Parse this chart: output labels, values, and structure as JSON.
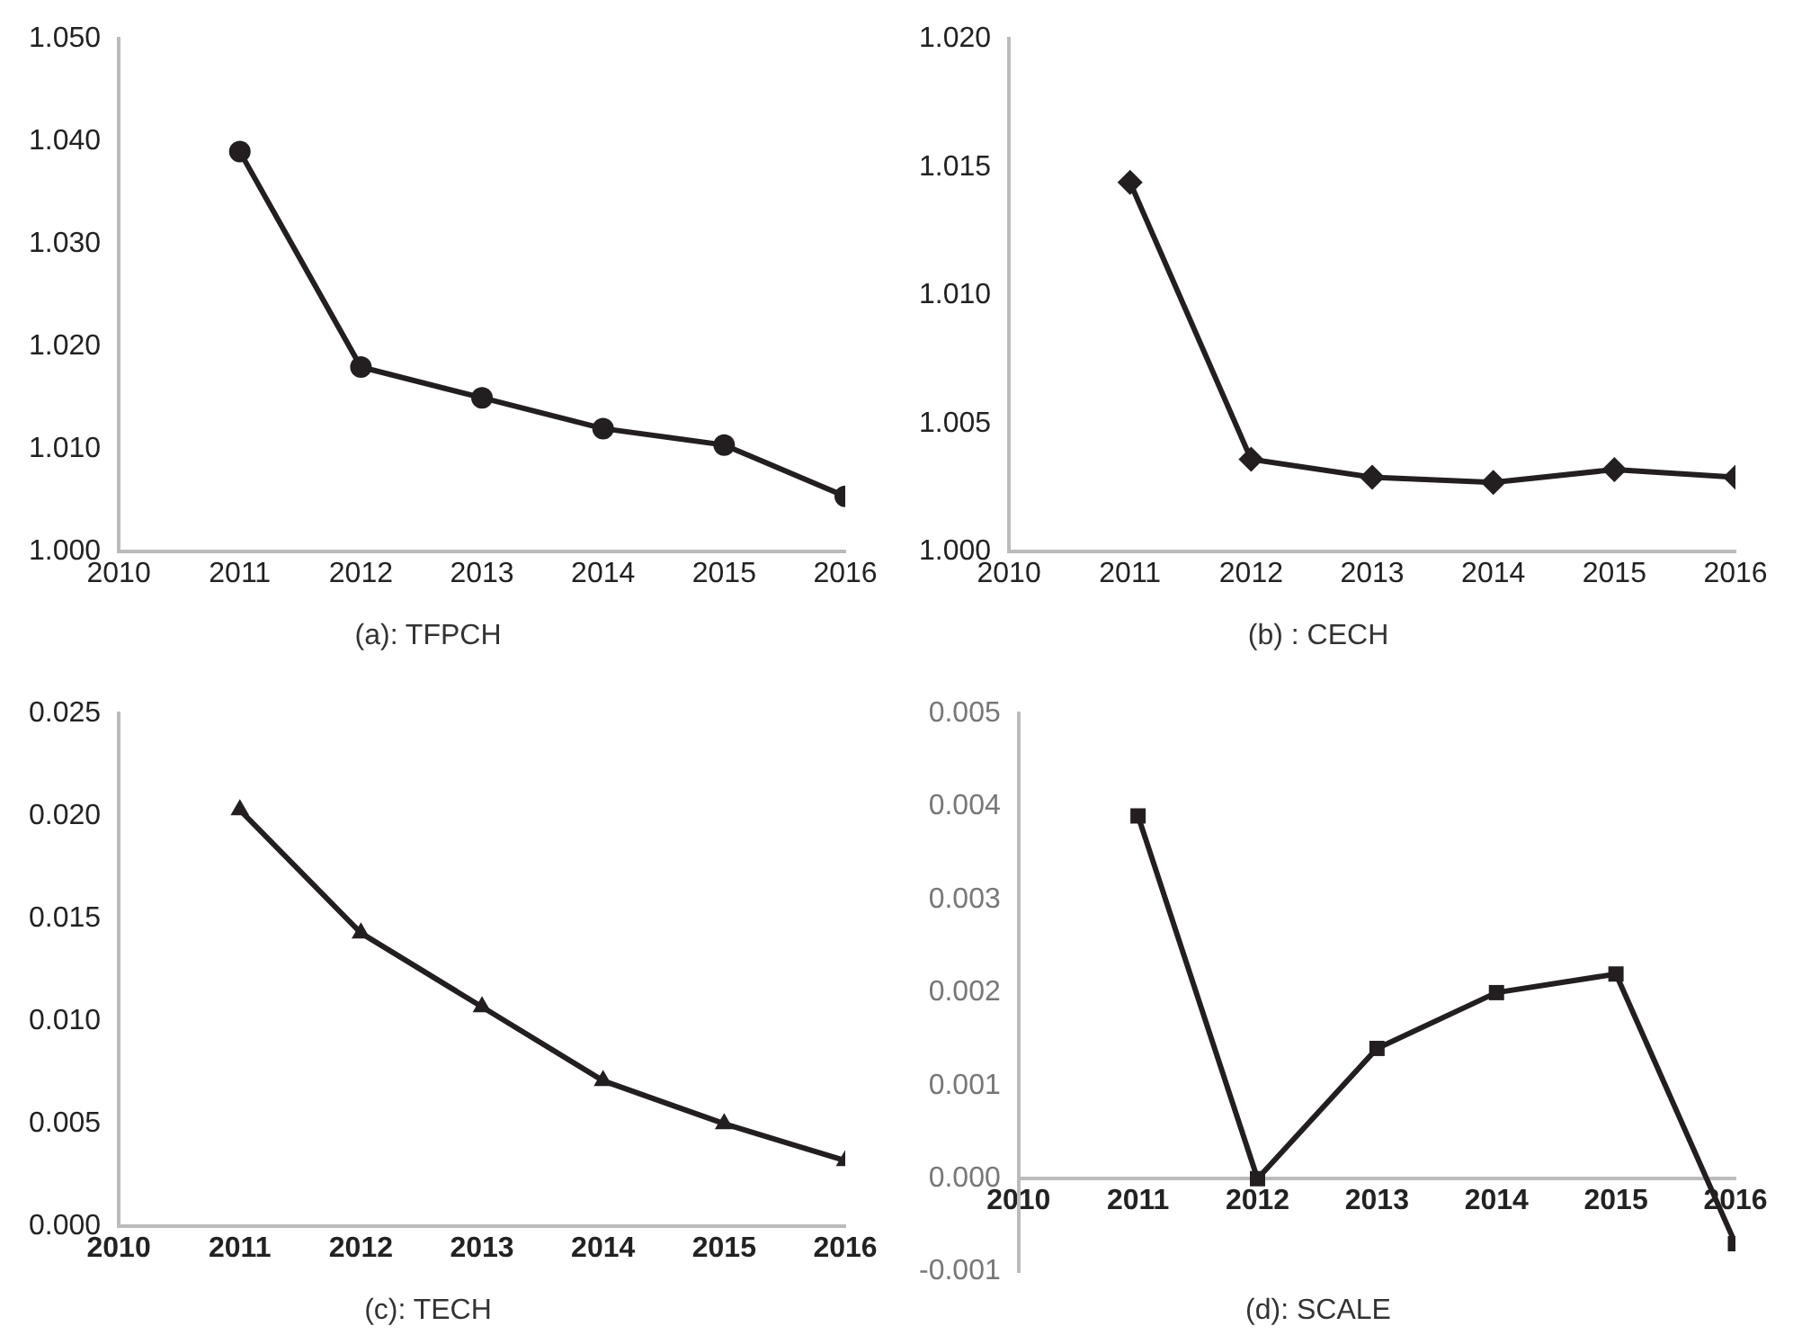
{
  "chart_data": [
    {
      "type": "line",
      "title": "(a): TFPCH",
      "x": [
        2011,
        2012,
        2013,
        2014,
        2015,
        2016
      ],
      "series": [
        {
          "color": "#231f20",
          "values": [
            1.039,
            1.018,
            1.015,
            1.012,
            1.0104,
            1.0054
          ]
        }
      ],
      "xlim": [
        2010,
        2016
      ],
      "xticks": [
        2010,
        2011,
        2012,
        2013,
        2014,
        2015,
        2016
      ],
      "ylim": [
        1.0,
        1.05
      ],
      "yticks": [
        {
          "value": 1.0,
          "label": "1.000"
        },
        {
          "value": 1.01,
          "label": "1.010"
        },
        {
          "value": 1.02,
          "label": "1.020"
        },
        {
          "value": 1.03,
          "label": "1.030"
        },
        {
          "value": 1.04,
          "label": "1.040"
        },
        {
          "value": 1.05,
          "label": "1.050"
        }
      ],
      "grid": false,
      "legend": false,
      "marker": "circle",
      "line_style": "solid"
    },
    {
      "type": "line",
      "title": "(b) : CECH",
      "x": [
        2011,
        2012,
        2013,
        2014,
        2015,
        2016
      ],
      "series": [
        {
          "color": "#231f20",
          "values": [
            1.0144,
            1.0036,
            1.0029,
            1.0027,
            1.0032,
            1.0029
          ]
        }
      ],
      "xlim": [
        2010,
        2016
      ],
      "xticks": [
        2010,
        2011,
        2012,
        2013,
        2014,
        2015,
        2016
      ],
      "ylim": [
        1.0,
        1.02
      ],
      "yticks": [
        {
          "value": 1.0,
          "label": "1.000"
        },
        {
          "value": 1.005,
          "label": "1.005"
        },
        {
          "value": 1.01,
          "label": "1.010"
        },
        {
          "value": 1.015,
          "label": "1.015"
        },
        {
          "value": 1.02,
          "label": "1.020"
        }
      ],
      "grid": false,
      "legend": false,
      "marker": "diamond",
      "line_style": "solid"
    },
    {
      "type": "line",
      "title": "(c): TECH",
      "x": [
        2011,
        2012,
        2013,
        2014,
        2015,
        2016
      ],
      "series": [
        {
          "color": "#231f20",
          "values": [
            0.0203,
            0.0143,
            0.0107,
            0.0071,
            0.005,
            0.0032
          ]
        }
      ],
      "xlim": [
        2010,
        2016
      ],
      "xticks": [
        2010,
        2011,
        2012,
        2013,
        2014,
        2015,
        2016
      ],
      "ylim": [
        0,
        0.025
      ],
      "yticks": [
        {
          "value": 0,
          "label": "0.000"
        },
        {
          "value": 0.005,
          "label": "0.005"
        },
        {
          "value": 0.01,
          "label": "0.010"
        },
        {
          "value": 0.015,
          "label": "0.015"
        },
        {
          "value": 0.02,
          "label": "0.020"
        },
        {
          "value": 0.025,
          "label": "0.025"
        }
      ],
      "grid": false,
      "legend": false,
      "marker": "triangle",
      "line_style": "solid"
    },
    {
      "type": "line",
      "title": "(d): SCALE",
      "x": [
        2011,
        2012,
        2013,
        2014,
        2015,
        2016
      ],
      "series": [
        {
          "color": "#231f20",
          "values": [
            0.0039,
            0.0,
            0.0014,
            0.002,
            0.0022,
            -0.0007
          ]
        }
      ],
      "xlim": [
        2010,
        2016
      ],
      "xticks": [
        2010,
        2011,
        2012,
        2013,
        2014,
        2015,
        2016
      ],
      "ylim": [
        -0.001,
        0.005
      ],
      "yticks": [
        {
          "value": -0.001,
          "label": "-0.001"
        },
        {
          "value": 0,
          "label": "0.000"
        },
        {
          "value": 0.001,
          "label": "0.001"
        },
        {
          "value": 0.002,
          "label": "0.002"
        },
        {
          "value": 0.003,
          "label": "0.003"
        },
        {
          "value": 0.004,
          "label": "0.004"
        },
        {
          "value": 0.005,
          "label": "0.005"
        }
      ],
      "grid": false,
      "legend": false,
      "marker": "square",
      "line_style": "solid"
    }
  ]
}
